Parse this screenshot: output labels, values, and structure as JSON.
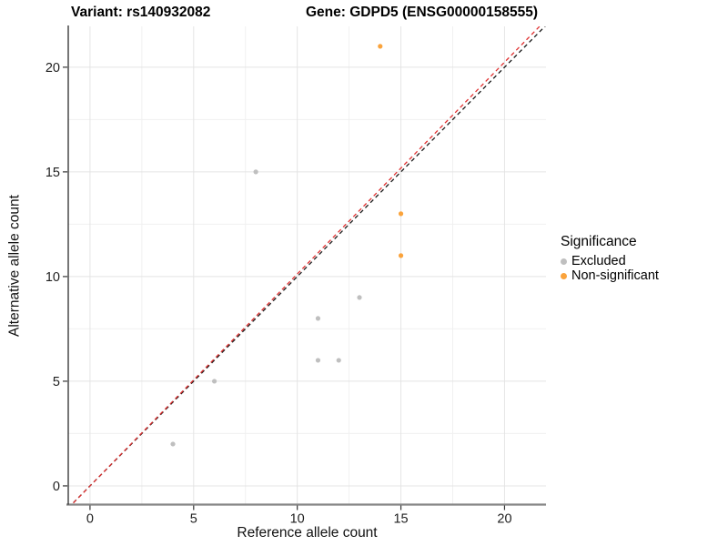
{
  "header": {
    "variant_title": "Variant: rs140932082",
    "gene_title": "Gene: GDPD5 (ENSG00000158555)"
  },
  "chart_data": {
    "type": "scatter",
    "title": "Variant: rs140932082   Gene: GDPD5 (ENSG00000158555)",
    "xlabel": "Reference allele count",
    "ylabel": "Alternative allele count",
    "xlim": [
      -1.05,
      22.0
    ],
    "ylim": [
      -0.85,
      21.95
    ],
    "x_ticks": [
      0,
      5,
      10,
      15,
      20
    ],
    "y_ticks": [
      0,
      5,
      10,
      15,
      20
    ],
    "x_minor_ticks": [
      2.5,
      7.5,
      12.5,
      17.5
    ],
    "y_minor_ticks": [
      2.5,
      7.5,
      12.5,
      17.5
    ],
    "grid": true,
    "legend_position": "right",
    "legend_title": "Significance",
    "series": [
      {
        "name": "Excluded",
        "color": "#bfbfbf",
        "points": [
          [
            4,
            2
          ],
          [
            6,
            5
          ],
          [
            8,
            15
          ],
          [
            11,
            6
          ],
          [
            11,
            8
          ],
          [
            12,
            6
          ],
          [
            13,
            9
          ]
        ]
      },
      {
        "name": "Non-significant",
        "color": "#FAA33C",
        "points": [
          [
            14,
            21
          ],
          [
            15,
            13
          ],
          [
            15,
            11
          ]
        ]
      }
    ],
    "reference_lines": [
      {
        "name": "identity-line",
        "color": "#1a1a1a",
        "slope": 1.0,
        "intercept": 0,
        "style": "dashed"
      },
      {
        "name": "ratio-line",
        "color": "#E03131",
        "slope": 1.012,
        "intercept": 0,
        "style": "dashed"
      }
    ],
    "style": {
      "major_grid_color": "#e4e4e4",
      "minor_grid_color": "#f0f0f0",
      "x_axis_line_color": "#858585",
      "y_axis_line_color": "#1a1a1a",
      "tick_color": "#333333",
      "point_radius": 2.6
    }
  }
}
